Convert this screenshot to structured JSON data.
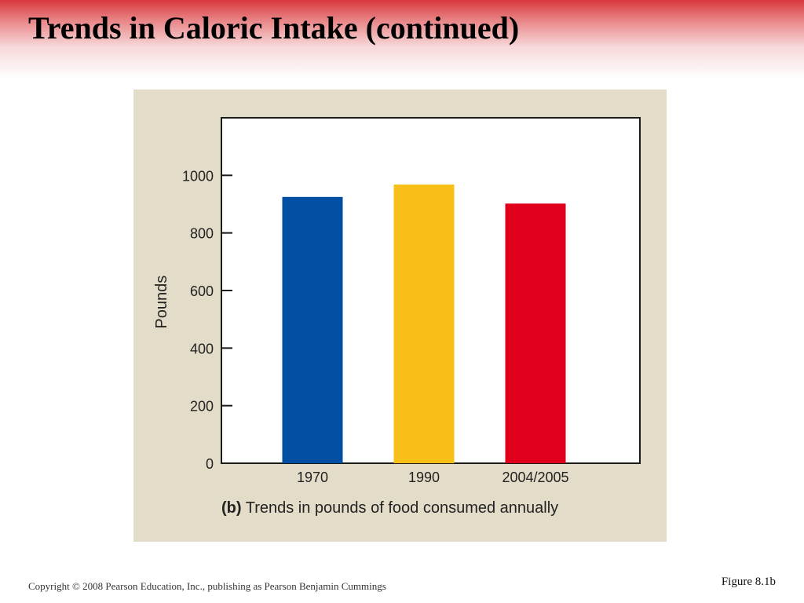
{
  "slide": {
    "title": "Trends in Caloric Intake (continued)",
    "copyright": "Copyright © 2008 Pearson Education, Inc., publishing as Pearson Benjamin Cummings",
    "figure_number": "Figure 8.1b"
  },
  "caption": {
    "label": "(b)",
    "text": "Trends in pounds of food consumed annually"
  },
  "colors": {
    "header_accent": "#d9383e",
    "panel_background": "#e3dcc8"
  },
  "chart_data": {
    "type": "bar",
    "categories": [
      "1970",
      "1990",
      "2004/2005"
    ],
    "values": [
      925,
      968,
      902
    ],
    "bar_colors": [
      "#004fa3",
      "#f7bf18",
      "#e0001b"
    ],
    "ylabel": "Pounds",
    "xlabel": "",
    "ylim": [
      0,
      1200
    ],
    "yticks": [
      0,
      200,
      400,
      600,
      800,
      1000
    ],
    "grid": false,
    "legend": "none"
  }
}
